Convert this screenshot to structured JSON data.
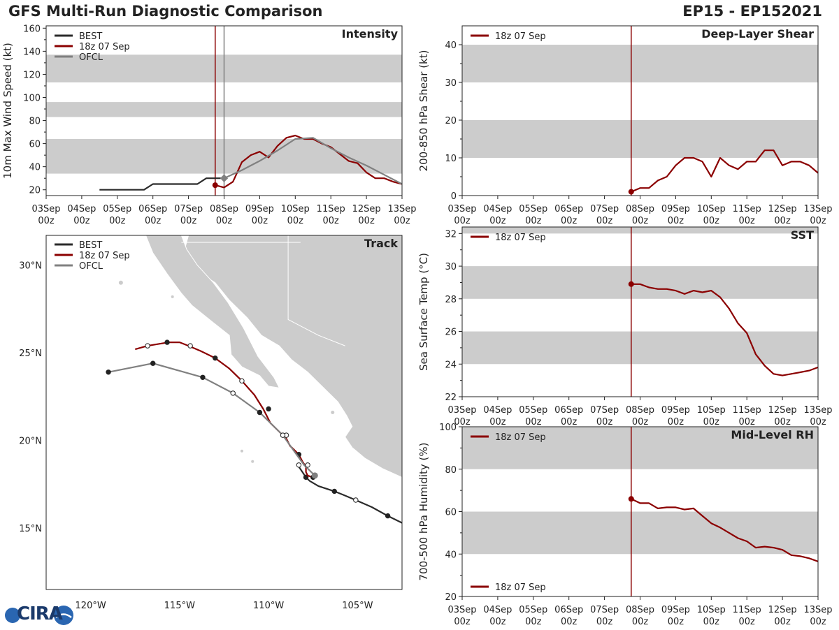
{
  "header": {
    "title_left": "GFS Multi-Run Diagnostic Comparison",
    "title_right": "EP15 - EP152021"
  },
  "logo": {
    "text": "CIRA"
  },
  "colors": {
    "best": "#2b2b2b",
    "gfs": "#8b0000",
    "ofcl": "#808080",
    "band": "#cccccc",
    "land": "#cccccc",
    "marker": "#8b0000"
  },
  "x_ticks": [
    "03Sep\n00z",
    "04Sep\n00z",
    "05Sep\n00z",
    "06Sep\n00z",
    "07Sep\n00z",
    "08Sep\n00z",
    "09Sep\n00z",
    "10Sep\n00z",
    "11Sep\n00z",
    "12Sep\n00z",
    "13Sep\n00z"
  ],
  "chart_data": [
    {
      "id": "intensity",
      "type": "line",
      "title": "Intensity",
      "ylabel": "10m Max Wind Speed (kt)",
      "xlim": [
        0,
        10
      ],
      "ylim": [
        15,
        162
      ],
      "yticks": [
        20,
        40,
        60,
        80,
        100,
        120,
        140,
        160
      ],
      "bands": [
        [
          34,
          64
        ],
        [
          83,
          96
        ],
        [
          113,
          137
        ]
      ],
      "vlines": [
        {
          "x": 4.75,
          "color": "gfs"
        },
        {
          "x": 5.0,
          "color": "ofcl"
        }
      ],
      "legend": [
        "BEST",
        "18z 07 Sep",
        "OFCL"
      ],
      "series": [
        {
          "name": "BEST",
          "color": "best",
          "width": 2.2,
          "x": [
            1.5,
            1.75,
            2,
            2.25,
            2.5,
            2.75,
            3,
            3.25,
            3.5,
            3.75,
            4,
            4.25,
            4.5,
            4.75,
            5
          ],
          "y": [
            20,
            20,
            20,
            20,
            20,
            20,
            25,
            25,
            25,
            25,
            25,
            25,
            30,
            30,
            30
          ]
        },
        {
          "name": "18z 07 Sep",
          "color": "gfs",
          "width": 2.2,
          "start_marker": true,
          "x": [
            4.75,
            5,
            5.25,
            5.5,
            5.75,
            6,
            6.25,
            6.5,
            6.75,
            7,
            7.25,
            7.5,
            7.75,
            8,
            8.25,
            8.5,
            8.75,
            9,
            9.25,
            9.5,
            9.75,
            10
          ],
          "y": [
            24,
            22,
            27,
            44,
            50,
            53,
            48,
            58,
            65,
            67,
            64,
            64,
            60,
            57,
            51,
            45,
            43,
            35,
            30,
            30,
            27,
            25
          ]
        },
        {
          "name": "OFCL",
          "color": "ofcl",
          "width": 2.2,
          "start_marker": true,
          "x": [
            5,
            5.5,
            6,
            6.5,
            7,
            7.5,
            8,
            8.5,
            9,
            9.5,
            10
          ],
          "y": [
            30,
            37,
            45,
            54,
            64,
            65,
            56,
            48,
            41,
            33,
            25
          ]
        }
      ]
    },
    {
      "id": "shear",
      "type": "line",
      "title": "Deep-Layer Shear",
      "ylabel": "200-850 hPa Shear (kt)",
      "xlim": [
        0,
        10
      ],
      "ylim": [
        0,
        45
      ],
      "yticks": [
        0,
        10,
        20,
        30,
        40
      ],
      "bands": [
        [
          10,
          20
        ],
        [
          30,
          40
        ]
      ],
      "vlines": [
        {
          "x": 4.75,
          "color": "gfs"
        }
      ],
      "legend": [
        "18z 07 Sep"
      ],
      "series": [
        {
          "name": "18z 07 Sep",
          "color": "gfs",
          "width": 2.2,
          "start_marker": true,
          "x": [
            4.75,
            5,
            5.25,
            5.5,
            5.75,
            6,
            6.25,
            6.5,
            6.75,
            7,
            7.25,
            7.5,
            7.75,
            8,
            8.25,
            8.5,
            8.75,
            9,
            9.25,
            9.5,
            9.75,
            10
          ],
          "y": [
            1,
            2,
            2,
            4,
            5,
            8,
            10,
            10,
            9,
            5,
            10,
            8,
            7,
            9,
            9,
            12,
            12,
            8,
            9,
            9,
            8,
            6
          ]
        }
      ]
    },
    {
      "id": "sst",
      "type": "line",
      "title": "SST",
      "ylabel": "Sea Surface Temp (°C)",
      "xlim": [
        0,
        10
      ],
      "ylim": [
        22,
        32.4
      ],
      "yticks": [
        22,
        24,
        26,
        28,
        30,
        32
      ],
      "bands": [
        [
          24,
          26
        ],
        [
          28,
          30
        ],
        [
          32,
          33
        ]
      ],
      "vlines": [
        {
          "x": 4.75,
          "color": "gfs"
        }
      ],
      "legend": [
        "18z 07 Sep"
      ],
      "series": [
        {
          "name": "18z 07 Sep",
          "color": "gfs",
          "width": 2.2,
          "start_marker": true,
          "x": [
            4.75,
            5,
            5.25,
            5.5,
            5.75,
            6,
            6.25,
            6.5,
            6.75,
            7,
            7.25,
            7.5,
            7.75,
            8,
            8.25,
            8.5,
            8.75,
            9,
            9.25,
            9.5,
            9.75,
            10
          ],
          "y": [
            28.9,
            28.9,
            28.7,
            28.6,
            28.6,
            28.5,
            28.3,
            28.5,
            28.4,
            28.5,
            28.1,
            27.4,
            26.5,
            25.9,
            24.6,
            23.9,
            23.4,
            23.3,
            23.4,
            23.5,
            23.6,
            23.8
          ]
        }
      ]
    },
    {
      "id": "rh",
      "type": "line",
      "title": "Mid-Level RH",
      "ylabel": "700-500 hPa Humidity (%)",
      "xlim": [
        0,
        10
      ],
      "ylim": [
        20,
        100
      ],
      "yticks": [
        20,
        40,
        60,
        80,
        100
      ],
      "bands": [
        [
          40,
          60
        ],
        [
          80,
          100
        ]
      ],
      "vlines": [
        {
          "x": 4.75,
          "color": "gfs"
        }
      ],
      "legend": [
        "18z 07 Sep"
      ],
      "series": [
        {
          "name": "18z 07 Sep",
          "color": "gfs",
          "width": 2.2,
          "start_marker": true,
          "x": [
            4.75,
            5,
            5.25,
            5.5,
            5.75,
            6,
            6.25,
            6.5,
            6.75,
            7,
            7.25,
            7.5,
            7.75,
            8,
            8.25,
            8.5,
            8.75,
            9,
            9.25,
            9.5,
            9.75,
            10
          ],
          "y": [
            66,
            64,
            64,
            61.5,
            62,
            62,
            61,
            61.5,
            58,
            54.5,
            52.5,
            50,
            47.5,
            46,
            43,
            43.5,
            43,
            42,
            39.5,
            39,
            38,
            36.5
          ]
        }
      ]
    },
    {
      "id": "track",
      "type": "scatter",
      "title": "Track",
      "xlim": [
        -122.5,
        -102.5
      ],
      "ylim": [
        11.5,
        31.7
      ],
      "xticks": [
        -120,
        -115,
        -110,
        -105
      ],
      "xticklabels": [
        "120°W",
        "115°W",
        "110°W",
        "105°W"
      ],
      "yticks": [
        15,
        20,
        25,
        30
      ],
      "yticklabels": [
        "15°N",
        "20°N",
        "25°N",
        "30°N"
      ],
      "legend": [
        "BEST",
        "18z 07 Sep",
        "OFCL"
      ],
      "series": [
        {
          "name": "BEST",
          "color": "best",
          "lon": [
            -102.5,
            -103.3,
            -104.2,
            -105.1,
            -105.8,
            -106.3,
            -107.2,
            -107.7,
            -107.9,
            -108.1,
            -108.3
          ],
          "lat": [
            15.3,
            15.7,
            16.2,
            16.6,
            16.9,
            17.1,
            17.4,
            17.7,
            17.9,
            18.2,
            18.5
          ],
          "markers": [
            [
              -103.3,
              15.7,
              "filled"
            ],
            [
              -105.1,
              16.6,
              "open"
            ],
            [
              -106.3,
              17.1,
              "filled"
            ],
            [
              -107.9,
              17.9,
              "filled"
            ]
          ]
        },
        {
          "name": "18z 07 Sep",
          "color": "gfs",
          "lon": [
            -107.5,
            -107.8,
            -107.9,
            -107.9,
            -108.1,
            -108.3,
            -108.6,
            -108.8,
            -109.0,
            -109.4,
            -109.9,
            -110.3,
            -110.8,
            -111.5,
            -112.2,
            -113.0,
            -113.8,
            -114.5,
            -115.0,
            -115.6,
            -116.2,
            -116.8,
            -117.5
          ],
          "lat": [
            17.9,
            18.0,
            18.2,
            18.5,
            18.8,
            19.2,
            19.5,
            19.7,
            20.1,
            20.5,
            21.0,
            21.8,
            22.6,
            23.4,
            24.1,
            24.7,
            25.1,
            25.4,
            25.6,
            25.6,
            25.5,
            25.4,
            25.2
          ],
          "markers": [
            [
              -107.5,
              17.9,
              "filled"
            ],
            [
              -108.3,
              19.2,
              "filled"
            ],
            [
              -109.0,
              20.3,
              "open"
            ],
            [
              -110.0,
              21.8,
              "filled"
            ],
            [
              -111.5,
              23.4,
              "open"
            ],
            [
              -113.0,
              24.7,
              "filled"
            ],
            [
              -114.4,
              25.4,
              "open"
            ],
            [
              -115.7,
              25.6,
              "filled"
            ],
            [
              -116.8,
              25.4,
              "open"
            ]
          ]
        },
        {
          "name": "OFCL",
          "color": "ofcl",
          "lon": [
            -107.4,
            -108.0,
            -108.5,
            -109.2,
            -110.5,
            -112.0,
            -113.7,
            -116.5,
            -119.0
          ],
          "lat": [
            18.0,
            18.6,
            19.3,
            20.3,
            21.6,
            22.7,
            23.6,
            24.4,
            23.9
          ],
          "markers": [
            [
              -107.8,
              18.6,
              "open"
            ],
            [
              -108.3,
              18.6,
              "open"
            ],
            [
              -109.2,
              20.3,
              "open"
            ],
            [
              -110.5,
              21.6,
              "filled"
            ],
            [
              -112.0,
              22.7,
              "open"
            ],
            [
              -113.7,
              23.6,
              "filled"
            ],
            [
              -116.5,
              24.4,
              "filled"
            ],
            [
              -119.0,
              23.9,
              "filled"
            ]
          ]
        }
      ]
    }
  ]
}
